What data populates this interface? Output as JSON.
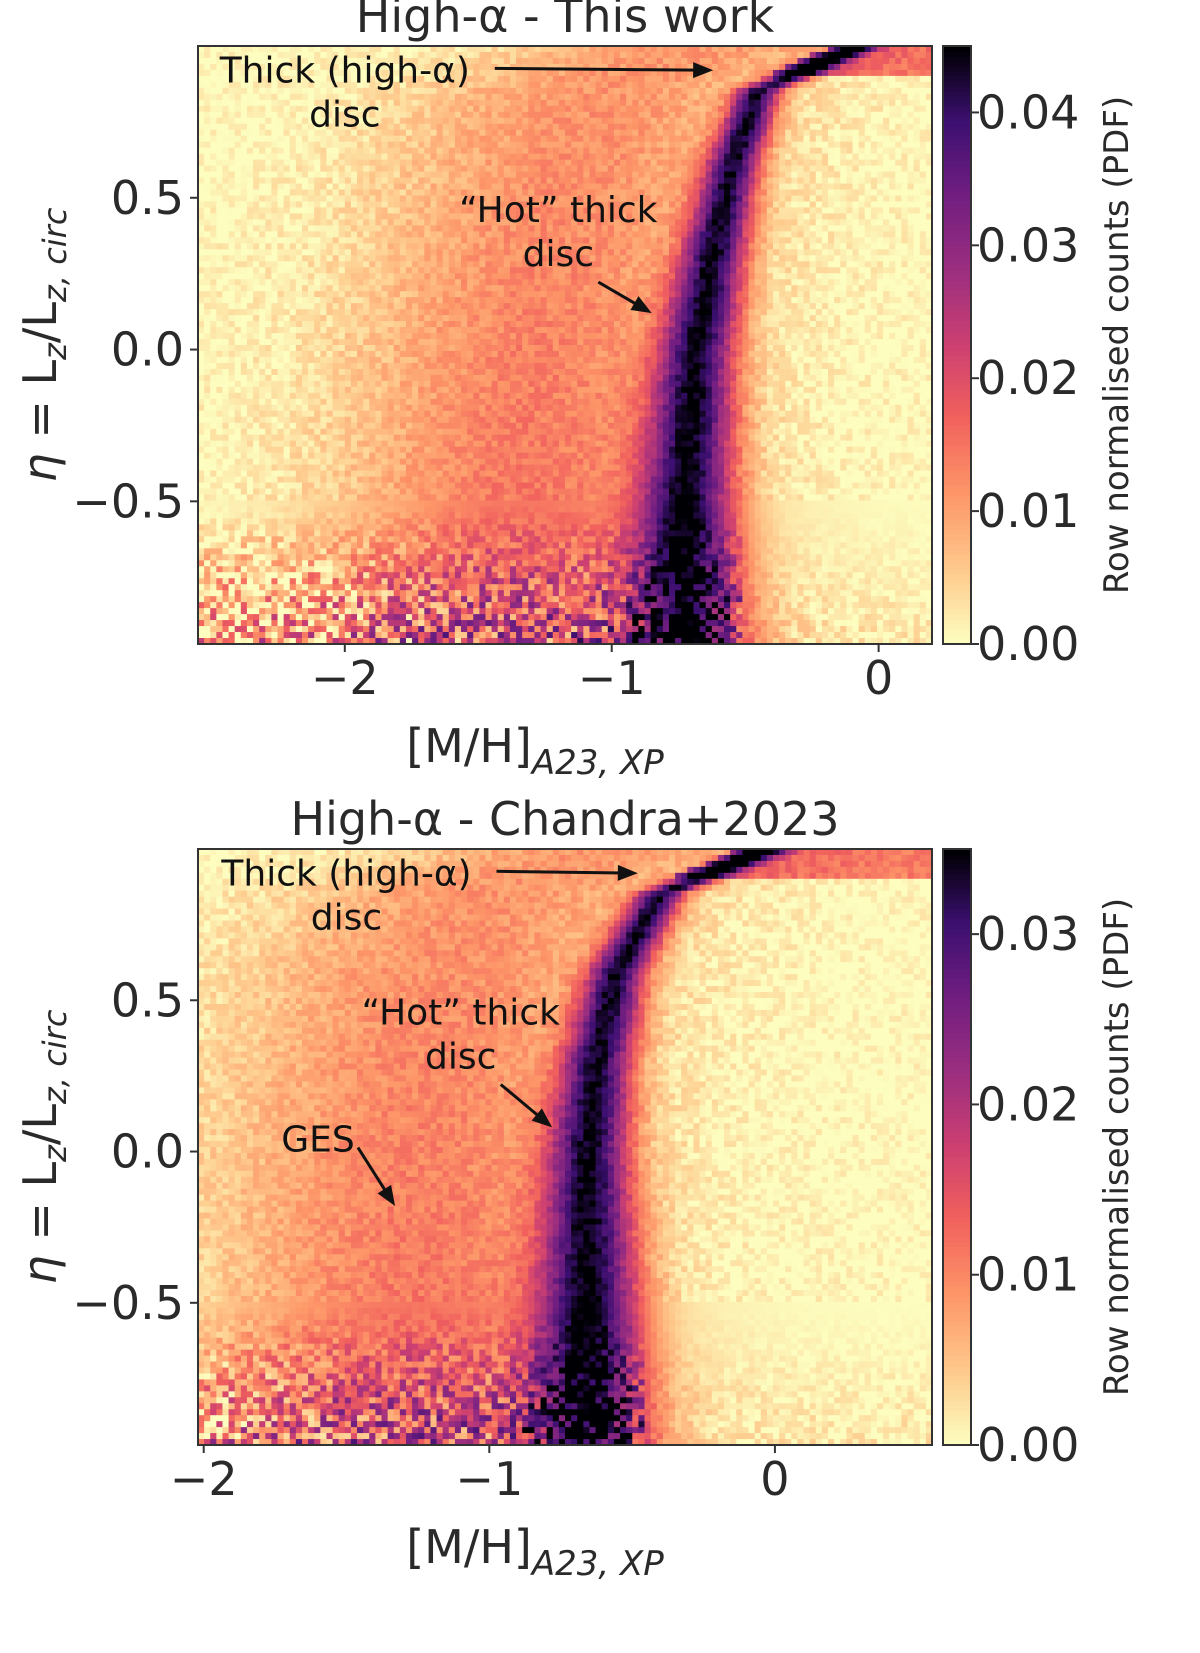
{
  "chart_data": [
    {
      "type": "heatmap",
      "title": "High-α - This work",
      "xlabel": "[M/H]",
      "xlabel_sub": "A23, XP",
      "ylabel_eta": "η",
      "ylabel_rest": " = L",
      "ylabel_z": "z",
      "ylabel_div": "/L",
      "ylabel_sub": "z, circ",
      "xlim": [
        -2.55,
        0.2
      ],
      "ylim": [
        -0.97,
        1.0
      ],
      "xticks": [
        -2,
        -1,
        0
      ],
      "xtick_labels": [
        "−2",
        "−1",
        "0"
      ],
      "yticks": [
        -0.5,
        0.0,
        0.5
      ],
      "ytick_labels": [
        "−0.5",
        "0.0",
        "0.5"
      ],
      "colorbar": {
        "label": "Row normalised counts (PDF)",
        "vmin": 0.0,
        "vmax": 0.045,
        "ticks": [
          0.0,
          0.01,
          0.02,
          0.03,
          0.04
        ],
        "tick_labels": [
          "0.00",
          "0.01",
          "0.02",
          "0.03",
          "0.04"
        ],
        "colormap": "magma_r"
      },
      "ridge": [
        {
          "y": 0.97,
          "x": -0.15
        },
        {
          "y": 0.85,
          "x": -0.45
        },
        {
          "y": 0.6,
          "x": -0.55
        },
        {
          "y": 0.3,
          "x": -0.62
        },
        {
          "y": 0.0,
          "x": -0.68
        },
        {
          "y": -0.5,
          "x": -0.72
        }
      ],
      "annotations": [
        {
          "text": [
            "Thick (high-α)",
            "disc"
          ],
          "x": -2.0,
          "y": 0.88,
          "arrow_to": [
            -0.62,
            0.92
          ]
        },
        {
          "text": [
            "“Hot” thick",
            "disc"
          ],
          "x": -1.2,
          "y": 0.42,
          "arrow_to": [
            -0.85,
            0.12
          ]
        }
      ]
    },
    {
      "type": "heatmap",
      "title": "High-α - Chandra+2023",
      "xlabel": "[M/H]",
      "xlabel_sub": "A23, XP",
      "ylabel_eta": "η",
      "ylabel_rest": " = L",
      "ylabel_z": "z",
      "ylabel_div": "/L",
      "ylabel_sub": "z, circ",
      "xlim": [
        -2.02,
        0.55
      ],
      "ylim": [
        -0.97,
        1.0
      ],
      "xticks": [
        -2,
        -1,
        0
      ],
      "xtick_labels": [
        "−2",
        "−1",
        "0"
      ],
      "yticks": [
        -0.5,
        0.0,
        0.5
      ],
      "ytick_labels": [
        "−0.5",
        "0.0",
        "0.5"
      ],
      "colorbar": {
        "label": "Row normalised counts (PDF)",
        "vmin": 0.0,
        "vmax": 0.035,
        "ticks": [
          0.0,
          0.01,
          0.02,
          0.03
        ],
        "tick_labels": [
          "0.00",
          "0.01",
          "0.02",
          "0.03"
        ],
        "colormap": "magma_r"
      },
      "ridge": [
        {
          "y": 0.97,
          "x": -0.1
        },
        {
          "y": 0.85,
          "x": -0.4
        },
        {
          "y": 0.6,
          "x": -0.55
        },
        {
          "y": 0.3,
          "x": -0.62
        },
        {
          "y": 0.0,
          "x": -0.65
        },
        {
          "y": -0.5,
          "x": -0.65
        }
      ],
      "annotations": [
        {
          "text": [
            "Thick (high-α)",
            "disc"
          ],
          "x": -1.5,
          "y": 0.88,
          "arrow_to": [
            -0.48,
            0.92
          ]
        },
        {
          "text": [
            "“Hot” thick",
            "disc"
          ],
          "x": -1.1,
          "y": 0.42,
          "arrow_to": [
            -0.78,
            0.08
          ]
        },
        {
          "text": [
            "GES"
          ],
          "x": -1.6,
          "y": 0.0,
          "arrow_to": [
            -1.33,
            -0.18
          ]
        }
      ]
    }
  ]
}
